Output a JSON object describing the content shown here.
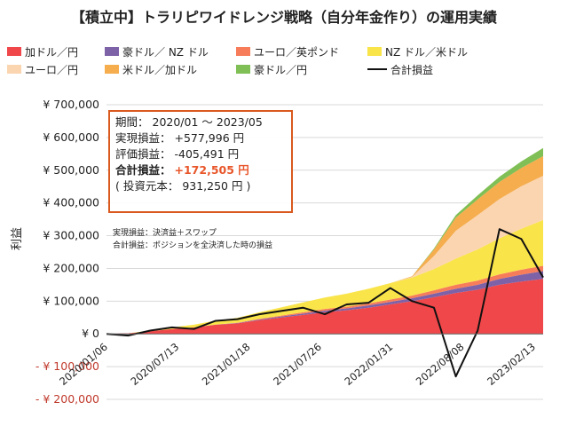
{
  "title": "【積立中】トラリピワイドレンジ戦略（自分年金作り）の運用実績",
  "legend": [
    {
      "name": "加ドル／円",
      "color": "#f0474a",
      "kind": "area"
    },
    {
      "name": "豪ドル／ NZ ドル",
      "color": "#7e62a8",
      "kind": "area"
    },
    {
      "name": "ユーロ／英ポンド",
      "color": "#f77c5a",
      "kind": "area"
    },
    {
      "name": "NZ ドル／米ドル",
      "color": "#f9e44a",
      "kind": "area"
    },
    {
      "name": "ユーロ／円",
      "color": "#fbd5b0",
      "kind": "area"
    },
    {
      "name": "米ドル／加ドル",
      "color": "#f5ad4e",
      "kind": "area"
    },
    {
      "name": "豪ドル／円",
      "color": "#7fbf55",
      "kind": "area"
    },
    {
      "name": "合計損益",
      "color": "#111111",
      "kind": "line"
    }
  ],
  "info": {
    "period_label": "期間：",
    "period_value": "2020/01 ～ 2023/05",
    "realized_label": "実現損益：",
    "realized_value": "+577,996 円",
    "unrealized_label": "評価損益：",
    "unrealized_value": "-405,491 円",
    "total_label": "合計損益：",
    "total_value": "+172,505 円",
    "principal": "( 投資元本： 931,250 円 )"
  },
  "notes": [
    "実現損益：決済益＋スワップ",
    "合計損益：ポジションを全決済した時の損益"
  ],
  "chart_data": {
    "type": "area",
    "ylabel": "利益",
    "ylim": [
      -200000,
      700000
    ],
    "yticks": [
      {
        "value": 700000,
        "label": "¥ 700,000",
        "color": "#222222"
      },
      {
        "value": 600000,
        "label": "¥ 600,000",
        "color": "#222222"
      },
      {
        "value": 500000,
        "label": "¥ 500,000",
        "color": "#222222"
      },
      {
        "value": 400000,
        "label": "¥ 400,000",
        "color": "#222222"
      },
      {
        "value": 300000,
        "label": "¥ 300,000",
        "color": "#222222"
      },
      {
        "value": 200000,
        "label": "¥ 200,000",
        "color": "#222222"
      },
      {
        "value": 100000,
        "label": "¥ 100,000",
        "color": "#222222"
      },
      {
        "value": 0,
        "label": "¥ 0",
        "color": "#222222"
      },
      {
        "value": -100000,
        "label": "- ¥ 100,000",
        "color": "#c0392b"
      },
      {
        "value": -200000,
        "label": "- ¥ 200,000",
        "color": "#c0392b"
      }
    ],
    "xticks": [
      "2020/01/06",
      "2020/07/13",
      "2021/01/18",
      "2021/07/26",
      "2022/01/31",
      "2022/08/08",
      "2023/02/13"
    ],
    "x": [
      "2020/01",
      "2020/03",
      "2020/05",
      "2020/07",
      "2020/09",
      "2020/11",
      "2021/01",
      "2021/03",
      "2021/05",
      "2021/07",
      "2021/09",
      "2021/11",
      "2022/01",
      "2022/03",
      "2022/05",
      "2022/07",
      "2022/09",
      "2022/11",
      "2023/01",
      "2023/03",
      "2023/05"
    ],
    "series": [
      {
        "name": "加ドル／円",
        "color": "#f0474a",
        "values": [
          0,
          2000,
          8000,
          15000,
          20000,
          28000,
          32000,
          42000,
          50000,
          58000,
          66000,
          72000,
          80000,
          90000,
          100000,
          112000,
          125000,
          135000,
          150000,
          160000,
          168000
        ]
      },
      {
        "name": "豪ドル／ NZ ドル",
        "color": "#7e62a8",
        "values": [
          0,
          0,
          0,
          0,
          0,
          500,
          1000,
          2000,
          3000,
          4000,
          5000,
          6000,
          7000,
          8000,
          9000,
          11000,
          13000,
          15000,
          18000,
          21000,
          24000
        ]
      },
      {
        "name": "ユーロ／英ポンド",
        "color": "#f77c5a",
        "values": [
          0,
          0,
          0,
          0,
          0,
          0,
          1000,
          2000,
          3000,
          4000,
          5000,
          5000,
          6000,
          7000,
          8000,
          10000,
          12000,
          13000,
          14000,
          15000,
          16000
        ]
      },
      {
        "name": "NZ ドル／米ドル",
        "color": "#f9e44a",
        "values": [
          0,
          0,
          2000,
          5000,
          8000,
          12000,
          15000,
          20000,
          25000,
          30000,
          35000,
          40000,
          45000,
          50000,
          55000,
          65000,
          80000,
          95000,
          110000,
          125000,
          140000
        ]
      },
      {
        "name": "ユーロ／円",
        "color": "#fbd5b0",
        "values": [
          0,
          0,
          0,
          0,
          0,
          0,
          0,
          0,
          0,
          0,
          0,
          0,
          0,
          0,
          2000,
          40000,
          85000,
          105000,
          120000,
          130000,
          135000
        ]
      },
      {
        "name": "米ドル／加ドル",
        "color": "#f5ad4e",
        "values": [
          0,
          0,
          0,
          0,
          0,
          0,
          0,
          0,
          0,
          0,
          0,
          0,
          0,
          0,
          2000,
          20000,
          40000,
          48000,
          52000,
          56000,
          60000
        ]
      },
      {
        "name": "豪ドル／円",
        "color": "#7fbf55",
        "values": [
          0,
          0,
          0,
          0,
          0,
          0,
          0,
          0,
          0,
          0,
          0,
          0,
          0,
          0,
          0,
          3000,
          8000,
          12000,
          16000,
          20000,
          25000
        ]
      }
    ],
    "line": {
      "name": "合計損益",
      "color": "#111111",
      "values": [
        0,
        -5000,
        10000,
        20000,
        15000,
        40000,
        45000,
        60000,
        70000,
        80000,
        60000,
        90000,
        95000,
        140000,
        100000,
        80000,
        -130000,
        10000,
        320000,
        290000,
        172505
      ]
    }
  }
}
